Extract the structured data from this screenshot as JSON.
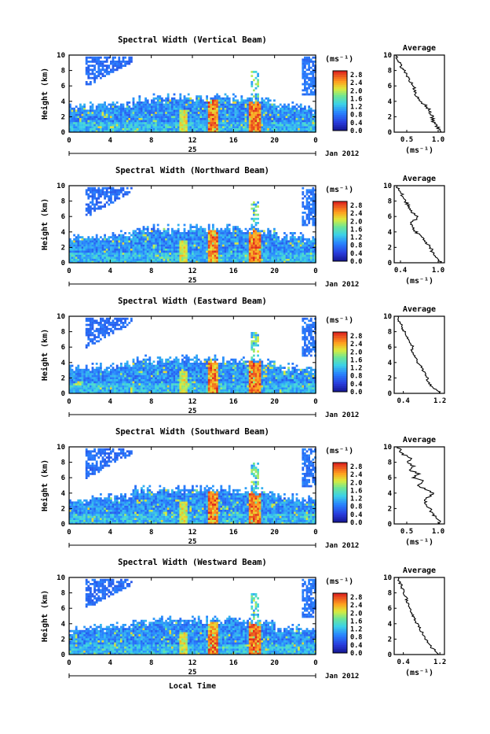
{
  "chart_data": [
    {
      "type": "heatmap",
      "title": "Spectral Width (Vertical Beam)",
      "ylabel": "Height (km)",
      "x_ticks": [
        "0",
        "4",
        "8",
        "12",
        "16",
        "20",
        "0"
      ],
      "y_ticks": [
        "0",
        "2",
        "4",
        "6",
        "8",
        "10"
      ],
      "xlim": [
        0,
        24
      ],
      "ylim": [
        0,
        10
      ],
      "day_label": "25",
      "month_label": "Jan 2012",
      "colorbar": {
        "unit": "(ms⁻¹)",
        "ticks": [
          "0.0",
          "0.4",
          "0.8",
          "1.2",
          "1.6",
          "2.0",
          "2.4",
          "2.8"
        ],
        "range": [
          0,
          3.0
        ]
      },
      "profile": {
        "title": "Average",
        "xlabel": "(ms⁻¹)",
        "x_ticks": [
          "0.5",
          "1.0"
        ],
        "x_tick_values": [
          0.5,
          1.0
        ],
        "xlim": [
          0.3,
          1.1
        ],
        "height": [
          0,
          0.5,
          1,
          1.5,
          2,
          2.5,
          3,
          3.5,
          4,
          4.5,
          5,
          5.5,
          6,
          6.5,
          7,
          7.5,
          8,
          8.5,
          9,
          9.5,
          10
        ],
        "value": [
          1.05,
          1.0,
          0.95,
          0.92,
          0.9,
          0.88,
          0.85,
          0.8,
          0.72,
          0.68,
          0.64,
          0.62,
          0.6,
          0.56,
          0.52,
          0.5,
          0.46,
          0.42,
          0.4,
          0.36,
          0.33
        ]
      }
    },
    {
      "type": "heatmap",
      "title": "Spectral Width (Northward Beam)",
      "ylabel": "Height (km)",
      "x_ticks": [
        "0",
        "4",
        "8",
        "12",
        "16",
        "20",
        "0"
      ],
      "y_ticks": [
        "0",
        "2",
        "4",
        "6",
        "8",
        "10"
      ],
      "xlim": [
        0,
        24
      ],
      "ylim": [
        0,
        10
      ],
      "day_label": "25",
      "month_label": "Jan 2012",
      "colorbar": {
        "unit": "(ms⁻¹)",
        "ticks": [
          "0.0",
          "0.4",
          "0.8",
          "1.2",
          "1.6",
          "2.0",
          "2.4",
          "2.8"
        ],
        "range": [
          0,
          3.0
        ]
      },
      "profile": {
        "title": "Average",
        "xlabel": "(ms⁻¹)",
        "x_ticks": [
          "0.4",
          "1.0"
        ],
        "x_tick_values": [
          0.4,
          1.0
        ],
        "xlim": [
          0.3,
          1.1
        ],
        "height": [
          0,
          0.5,
          1,
          1.5,
          2,
          2.5,
          3,
          3.5,
          4,
          4.5,
          5,
          5.5,
          6,
          6.5,
          7,
          7.5,
          8,
          8.5,
          9,
          9.5,
          10
        ],
        "value": [
          1.05,
          1.0,
          0.95,
          0.9,
          0.88,
          0.82,
          0.78,
          0.72,
          0.65,
          0.6,
          0.55,
          0.62,
          0.68,
          0.6,
          0.55,
          0.52,
          0.48,
          0.45,
          0.42,
          0.38,
          0.35
        ]
      }
    },
    {
      "type": "heatmap",
      "title": "Spectral Width (Eastward Beam)",
      "ylabel": "Height (km)",
      "x_ticks": [
        "0",
        "4",
        "8",
        "12",
        "16",
        "20",
        "0"
      ],
      "y_ticks": [
        "0",
        "2",
        "4",
        "6",
        "8",
        "10"
      ],
      "xlim": [
        0,
        24
      ],
      "ylim": [
        0,
        10
      ],
      "day_label": "25",
      "month_label": "Jan 2012",
      "colorbar": {
        "unit": "(ms⁻¹)",
        "ticks": [
          "0.0",
          "0.4",
          "0.8",
          "1.2",
          "1.6",
          "2.0",
          "2.4",
          "2.8"
        ],
        "range": [
          0,
          3.0
        ]
      },
      "profile": {
        "title": "Average",
        "xlabel": "",
        "x_ticks": [
          "0.4",
          "1.2"
        ],
        "x_tick_values": [
          0.4,
          1.2
        ],
        "xlim": [
          0.2,
          1.3
        ],
        "height": [
          0,
          0.5,
          1,
          1.5,
          2,
          2.5,
          3,
          3.5,
          4,
          4.5,
          5,
          5.5,
          6,
          6.5,
          7,
          7.5,
          8,
          8.5,
          9,
          9.5,
          10
        ],
        "value": [
          1.2,
          1.1,
          1.0,
          0.95,
          0.92,
          0.88,
          0.82,
          0.78,
          0.72,
          0.68,
          0.62,
          0.58,
          0.62,
          0.56,
          0.5,
          0.46,
          0.42,
          0.38,
          0.34,
          0.3,
          0.28
        ]
      }
    },
    {
      "type": "heatmap",
      "title": "Spectral Width (Southward Beam)",
      "ylabel": "Height (km)",
      "x_ticks": [
        "0",
        "4",
        "8",
        "12",
        "16",
        "20",
        "0"
      ],
      "y_ticks": [
        "0",
        "2",
        "4",
        "6",
        "8",
        "10"
      ],
      "xlim": [
        0,
        24
      ],
      "ylim": [
        0,
        10
      ],
      "day_label": "25",
      "month_label": "Jan 2012",
      "colorbar": {
        "unit": "(ms⁻¹)",
        "ticks": [
          "0.0",
          "0.4",
          "0.8",
          "1.2",
          "1.6",
          "2.0",
          "2.4",
          "2.8"
        ],
        "range": [
          0,
          3.0
        ]
      },
      "profile": {
        "title": "Average",
        "xlabel": "(ms⁻¹)",
        "x_ticks": [
          "0.5",
          "1.0"
        ],
        "x_tick_values": [
          0.5,
          1.0
        ],
        "xlim": [
          0.3,
          1.1
        ],
        "height": [
          0,
          0.5,
          1,
          1.5,
          2,
          2.5,
          3,
          3.5,
          4,
          4.5,
          5,
          5.5,
          6,
          6.5,
          7,
          7.5,
          8,
          8.5,
          9,
          9.5,
          10
        ],
        "value": [
          1.05,
          1.0,
          0.95,
          0.9,
          0.86,
          0.82,
          0.78,
          0.85,
          0.92,
          0.8,
          0.65,
          0.78,
          0.6,
          0.7,
          0.55,
          0.62,
          0.5,
          0.58,
          0.45,
          0.4,
          0.35
        ]
      }
    },
    {
      "type": "heatmap",
      "title": "Spectral Width (Westward Beam)",
      "ylabel": "Height (km)",
      "xlabel": "Local Time",
      "x_ticks": [
        "0",
        "4",
        "8",
        "12",
        "16",
        "20",
        "0"
      ],
      "y_ticks": [
        "0",
        "2",
        "4",
        "6",
        "8",
        "10"
      ],
      "xlim": [
        0,
        24
      ],
      "ylim": [
        0,
        10
      ],
      "day_label": "25",
      "month_label": "Jan 2012",
      "colorbar": {
        "unit": "(ms⁻¹)",
        "ticks": [
          "0.0",
          "0.4",
          "0.8",
          "1.2",
          "1.6",
          "2.0",
          "2.4",
          "2.8"
        ],
        "range": [
          0,
          3.0
        ]
      },
      "profile": {
        "title": "Average",
        "xlabel": "(ms⁻¹)",
        "x_ticks": [
          "0.4",
          "1.2"
        ],
        "x_tick_values": [
          0.4,
          1.2
        ],
        "xlim": [
          0.2,
          1.3
        ],
        "height": [
          0,
          0.5,
          1,
          1.5,
          2,
          2.5,
          3,
          3.5,
          4,
          4.5,
          5,
          5.5,
          6,
          6.5,
          7,
          7.5,
          8,
          8.5,
          9,
          9.5,
          10
        ],
        "value": [
          1.2,
          1.1,
          1.0,
          0.95,
          0.9,
          0.85,
          0.8,
          0.75,
          0.7,
          0.66,
          0.62,
          0.58,
          0.55,
          0.52,
          0.48,
          0.45,
          0.42,
          0.38,
          0.35,
          0.3,
          0.28
        ]
      }
    }
  ]
}
